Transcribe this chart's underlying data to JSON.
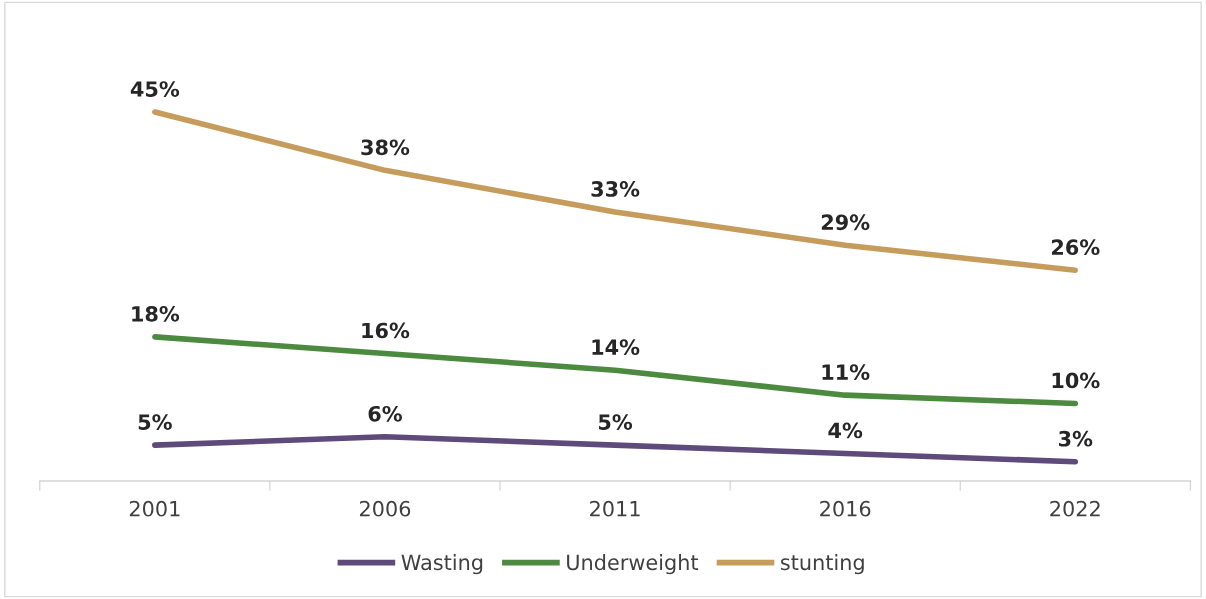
{
  "chart_data": {
    "type": "line",
    "categories": [
      "2001",
      "2006",
      "2011",
      "2016",
      "2022"
    ],
    "series": [
      {
        "name": "Wasting",
        "color": "#5f4a7c",
        "values": [
          5,
          6,
          5,
          4,
          3
        ],
        "value_labels": [
          "5%",
          "6%",
          "5%",
          "4%",
          "3%"
        ]
      },
      {
        "name": "Underweight",
        "color": "#4c8a3f",
        "values": [
          18,
          16,
          14,
          11,
          10
        ],
        "value_labels": [
          "18%",
          "16%",
          "14%",
          "11%",
          "10%"
        ]
      },
      {
        "name": "stunting",
        "color": "#c69c5d",
        "values": [
          45,
          38,
          33,
          29,
          26
        ],
        "value_labels": [
          "45%",
          "38%",
          "33%",
          "29%",
          "26%"
        ]
      }
    ],
    "tick_labels": "x",
    "grid": false,
    "legend": "bottom",
    "marker": "none",
    "line_style": "solid"
  }
}
